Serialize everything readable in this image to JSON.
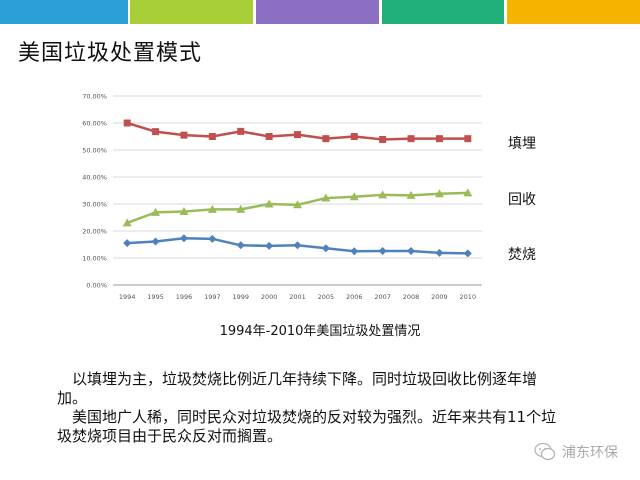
{
  "slide": {
    "title": "美国垃圾处置模式",
    "caption": "1994年-2010年美国垃圾处置情况",
    "paragraph1": "以填埋为主，垃圾焚烧比例近几年持续下降。同时垃圾回收比例逐年增加。",
    "paragraph2": "美国地广人稀，同时民众对垃圾焚烧的反对较为强烈。近年来共有11个垃圾焚烧项目由于民众反对而搁置。",
    "watermark": "浦东环保",
    "top_bar_colors": [
      "#2a9fd6",
      "#a8cf38",
      "#8a6fc2",
      "#22b07a",
      "#f4b400"
    ]
  },
  "chart_data": {
    "type": "line",
    "categories": [
      "1994",
      "1995",
      "1996",
      "1997",
      "1999",
      "2000",
      "2001",
      "2005",
      "2006",
      "2007",
      "2008",
      "2009",
      "2010"
    ],
    "y_ticks": [
      "0.00%",
      "10.00%",
      "20.00%",
      "30.00%",
      "40.00%",
      "50.00%",
      "60.00%",
      "70.00%"
    ],
    "ylim": [
      0,
      70
    ],
    "grid": true,
    "legend_position": "right",
    "series": [
      {
        "name": "填埋",
        "color": "#c0504d",
        "marker": "square",
        "values": [
          60.0,
          56.8,
          55.5,
          55.0,
          56.9,
          55.0,
          55.7,
          54.2,
          55.0,
          53.9,
          54.2,
          54.2,
          54.2
        ]
      },
      {
        "name": "回收",
        "color": "#9bbb59",
        "marker": "triangle",
        "values": [
          23.0,
          26.9,
          27.2,
          28.0,
          28.0,
          30.0,
          29.7,
          32.2,
          32.7,
          33.4,
          33.2,
          33.8,
          34.1
        ]
      },
      {
        "name": "焚烧",
        "color": "#4f81bd",
        "marker": "diamond",
        "values": [
          15.5,
          16.1,
          17.3,
          17.1,
          14.7,
          14.5,
          14.7,
          13.6,
          12.5,
          12.6,
          12.6,
          11.9,
          11.7
        ]
      }
    ]
  }
}
